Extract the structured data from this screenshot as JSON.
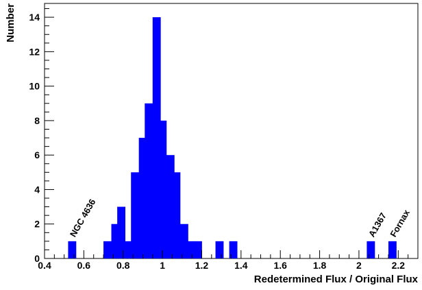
{
  "chart_data": {
    "type": "bar",
    "title": "",
    "xlabel": "Redetermined Flux / Original Flux",
    "ylabel": "Number",
    "xlim": [
      0.4,
      2.3
    ],
    "ylim": [
      0,
      14.8
    ],
    "bin_width": 0.04,
    "x_ticks": [
      "0.4",
      "0.6",
      "0.8",
      "1",
      "1.2",
      "1.4",
      "1.6",
      "1.8",
      "2",
      "2.2"
    ],
    "x_tick_values": [
      0.4,
      0.6,
      0.8,
      1.0,
      1.2,
      1.4,
      1.6,
      1.8,
      2.0,
      2.2
    ],
    "y_ticks": [
      "0",
      "2",
      "4",
      "6",
      "8",
      "10",
      "12",
      "14"
    ],
    "y_tick_values": [
      0,
      2,
      4,
      6,
      8,
      10,
      12,
      14
    ],
    "grid": false,
    "bar_color": "#0000ff",
    "bins": [
      {
        "x0": 0.52,
        "value": 1
      },
      {
        "x0": 0.7,
        "value": 1
      },
      {
        "x0": 0.74,
        "value": 2
      },
      {
        "x0": 0.77,
        "value": 3
      },
      {
        "x0": 0.81,
        "value": 1
      },
      {
        "x0": 0.84,
        "value": 5
      },
      {
        "x0": 0.88,
        "value": 7
      },
      {
        "x0": 0.91,
        "value": 9
      },
      {
        "x0": 0.95,
        "value": 14
      },
      {
        "x0": 0.98,
        "value": 8
      },
      {
        "x0": 1.02,
        "value": 6
      },
      {
        "x0": 1.05,
        "value": 5
      },
      {
        "x0": 1.09,
        "value": 2
      },
      {
        "x0": 1.12,
        "value": 1
      },
      {
        "x0": 1.16,
        "value": 1
      },
      {
        "x0": 1.27,
        "value": 1
      },
      {
        "x0": 1.34,
        "value": 1
      },
      {
        "x0": 2.04,
        "value": 1
      },
      {
        "x0": 2.15,
        "value": 1
      }
    ],
    "annotations": [
      {
        "text": "NGC 4636",
        "x": 0.54,
        "y": 1.2
      },
      {
        "text": "A1367",
        "x": 2.06,
        "y": 1.2
      },
      {
        "text": "Fornax",
        "x": 2.17,
        "y": 1.2
      }
    ]
  }
}
